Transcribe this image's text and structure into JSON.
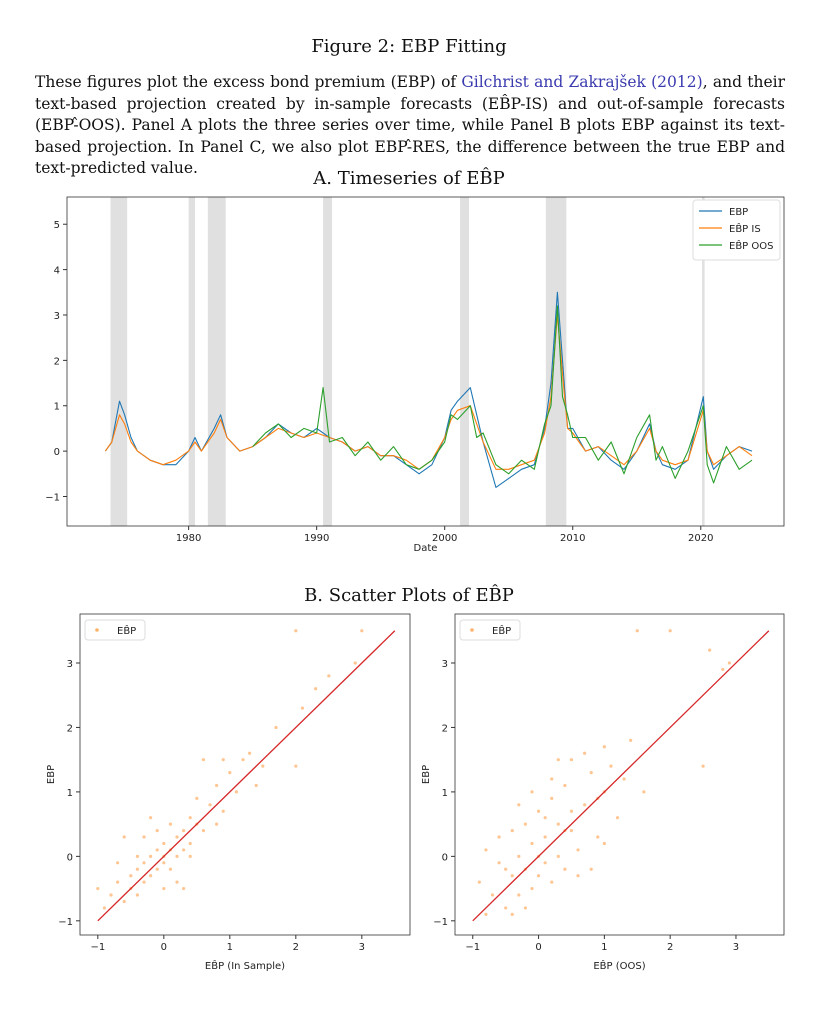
{
  "figure_title": "Figure 2: EBP Fitting",
  "caption": {
    "part1": "These figures plot the excess bond premium (EBP) of ",
    "link": "Gilchrist and Zakrajšek (2012)",
    "part2": ", and their text-based projection created by in-sample forecasts (EB̂P-IS) and out-of-sample forecasts (EBP-̂OOS). Panel A plots the three series over time, while Panel B plots EBP against its text-based projection. In Panel C, we also plot EBP-̂RES, the difference between the true EBP and text-predicted value."
  },
  "panelA_title": "A. Timeseries of EB̂P",
  "panelB_title": "B. Scatter Plots of EB̂P",
  "colors": {
    "ebp": "#1f77b4",
    "is": "#ff7f0e",
    "oos": "#2ca02c",
    "fit": "#d62728",
    "recession": "#e0e0e0"
  },
  "chart_data": [
    {
      "type": "line",
      "title": "A. Timeseries of EB̂P",
      "xlabel": "Date",
      "ylabel": "",
      "xlim": [
        1970.5,
        2026.5
      ],
      "ylim": [
        -1.65,
        5.6
      ],
      "xticks": [
        1980,
        1990,
        2000,
        2010,
        2020
      ],
      "yticks": [
        -1,
        0,
        1,
        2,
        3,
        4,
        5
      ],
      "legend_position": "top-right",
      "recessions": [
        [
          1973.9,
          1975.2
        ],
        [
          1980.0,
          1980.5
        ],
        [
          1981.5,
          1982.9
        ],
        [
          1990.5,
          1991.2
        ],
        [
          2001.2,
          2001.9
        ],
        [
          2007.9,
          2009.5
        ],
        [
          2020.1,
          2020.3
        ]
      ],
      "series": [
        {
          "name": "EBP",
          "key": "ebp",
          "x": [
            1973.5,
            1974,
            1974.6,
            1975,
            1975.5,
            1976,
            1977,
            1978,
            1979,
            1980,
            1980.5,
            1981,
            1982,
            1982.5,
            1983,
            1984,
            1985,
            1986,
            1987,
            1988,
            1989,
            1990,
            1991,
            1992,
            1993,
            1994,
            1995,
            1996,
            1997,
            1998,
            1999,
            2000,
            2000.5,
            2001,
            2002,
            2002.5,
            2003,
            2004,
            2005,
            2006,
            2007,
            2007.8,
            2008.3,
            2008.8,
            2009.2,
            2009.6,
            2010,
            2011,
            2012,
            2013,
            2014,
            2015,
            2016,
            2016.5,
            2017,
            2018,
            2019,
            2020.2,
            2020.5,
            2021,
            2022,
            2023,
            2024
          ],
          "y": [
            0.0,
            0.2,
            1.1,
            0.8,
            0.3,
            0.0,
            -0.2,
            -0.3,
            -0.3,
            0.0,
            0.3,
            0.0,
            0.5,
            0.8,
            0.3,
            0.0,
            0.1,
            0.3,
            0.6,
            0.4,
            0.3,
            0.5,
            0.3,
            0.2,
            0.0,
            0.1,
            -0.1,
            -0.1,
            -0.3,
            -0.5,
            -0.3,
            0.3,
            0.9,
            1.1,
            1.4,
            0.8,
            0.2,
            -0.8,
            -0.6,
            -0.4,
            -0.3,
            0.5,
            1.5,
            3.5,
            2.0,
            0.5,
            0.5,
            0.0,
            0.1,
            -0.2,
            -0.4,
            0.0,
            0.6,
            0.0,
            -0.3,
            -0.4,
            -0.2,
            1.2,
            0.0,
            -0.4,
            -0.1,
            0.1,
            0.0
          ]
        },
        {
          "name": "EB̂P IS",
          "key": "is",
          "x": [
            1973.5,
            1974,
            1974.6,
            1975,
            1975.5,
            1976,
            1977,
            1978,
            1979,
            1980,
            1980.5,
            1981,
            1982,
            1982.5,
            1983,
            1984,
            1985,
            1986,
            1987,
            1988,
            1989,
            1990,
            1991,
            1992,
            1993,
            1994,
            1995,
            1996,
            1997,
            1998,
            1999,
            2000,
            2000.5,
            2001,
            2002,
            2002.5,
            2003,
            2004,
            2005,
            2006,
            2007,
            2007.8,
            2008.3,
            2008.8,
            2009.2,
            2009.6,
            2010,
            2011,
            2012,
            2013,
            2014,
            2015,
            2016,
            2016.5,
            2017,
            2018,
            2019,
            2020.2,
            2020.5,
            2021,
            2022,
            2023,
            2024
          ],
          "y": [
            0.0,
            0.2,
            0.8,
            0.6,
            0.2,
            0.0,
            -0.2,
            -0.3,
            -0.2,
            0.0,
            0.2,
            0.0,
            0.4,
            0.7,
            0.3,
            0.0,
            0.1,
            0.3,
            0.5,
            0.4,
            0.3,
            0.4,
            0.3,
            0.2,
            0.0,
            0.1,
            -0.1,
            -0.1,
            -0.2,
            -0.4,
            -0.2,
            0.3,
            0.7,
            0.9,
            1.0,
            0.6,
            0.2,
            -0.4,
            -0.4,
            -0.3,
            -0.2,
            0.4,
            1.2,
            3.0,
            1.7,
            0.5,
            0.4,
            0.0,
            0.1,
            -0.1,
            -0.3,
            0.0,
            0.5,
            0.0,
            -0.2,
            -0.3,
            -0.2,
            0.9,
            0.0,
            -0.3,
            -0.1,
            0.1,
            -0.1
          ]
        },
        {
          "name": "EB̂P OOS",
          "key": "oos",
          "x": [
            1985,
            1986,
            1987,
            1988,
            1989,
            1990,
            1990.5,
            1991,
            1992,
            1993,
            1994,
            1995,
            1996,
            1997,
            1998,
            1999,
            2000,
            2000.5,
            2001,
            2002,
            2002.5,
            2003,
            2004,
            2005,
            2006,
            2007,
            2007.8,
            2008.3,
            2008.8,
            2009.2,
            2009.6,
            2010,
            2011,
            2012,
            2013,
            2014,
            2015,
            2016,
            2016.5,
            2017,
            2018,
            2019,
            2020.2,
            2020.5,
            2021,
            2022,
            2023,
            2024
          ],
          "y": [
            0.1,
            0.4,
            0.6,
            0.3,
            0.5,
            0.4,
            1.4,
            0.2,
            0.3,
            -0.1,
            0.2,
            -0.2,
            0.1,
            -0.3,
            -0.4,
            -0.2,
            0.2,
            0.8,
            0.7,
            1.0,
            0.3,
            0.4,
            -0.3,
            -0.5,
            -0.2,
            -0.4,
            0.6,
            1.0,
            3.2,
            1.2,
            0.8,
            0.3,
            0.3,
            -0.2,
            0.2,
            -0.5,
            0.3,
            0.8,
            -0.2,
            0.1,
            -0.6,
            0.0,
            1.0,
            -0.3,
            -0.7,
            0.1,
            -0.4,
            -0.2
          ]
        }
      ]
    },
    {
      "type": "scatter",
      "xlabel": "EB̂P (In Sample)",
      "ylabel": "EBP",
      "legend": "EB̂P",
      "legend_position": "top-left",
      "xlim": [
        -1.27,
        3.73
      ],
      "ylim": [
        -1.22,
        3.76
      ],
      "xticks": [
        -1,
        0,
        1,
        2,
        3
      ],
      "yticks": [
        -1,
        0,
        1,
        2,
        3
      ],
      "fit_line": [
        [
          -1,
          -1
        ],
        [
          3.5,
          3.5
        ]
      ],
      "points": [
        [
          -0.9,
          -0.8
        ],
        [
          -0.8,
          -0.6
        ],
        [
          -0.7,
          -0.4
        ],
        [
          -0.6,
          -0.7
        ],
        [
          -0.5,
          -0.3
        ],
        [
          -0.5,
          -0.5
        ],
        [
          -0.4,
          -0.2
        ],
        [
          -0.4,
          -0.6
        ],
        [
          -0.3,
          -0.1
        ],
        [
          -0.3,
          -0.4
        ],
        [
          -0.2,
          0.0
        ],
        [
          -0.2,
          -0.3
        ],
        [
          -0.1,
          0.1
        ],
        [
          -0.1,
          -0.2
        ],
        [
          0.0,
          0.0
        ],
        [
          0.0,
          -0.1
        ],
        [
          0.0,
          0.2
        ],
        [
          0.1,
          0.1
        ],
        [
          0.1,
          -0.2
        ],
        [
          0.2,
          0.3
        ],
        [
          0.2,
          0.0
        ],
        [
          0.3,
          0.4
        ],
        [
          0.3,
          0.1
        ],
        [
          0.4,
          0.6
        ],
        [
          0.4,
          0.2
        ],
        [
          0.5,
          0.5
        ],
        [
          0.5,
          0.9
        ],
        [
          0.6,
          0.4
        ],
        [
          0.7,
          0.8
        ],
        [
          0.8,
          1.1
        ],
        [
          0.9,
          0.7
        ],
        [
          1.0,
          1.3
        ],
        [
          1.1,
          1.0
        ],
        [
          1.2,
          1.5
        ],
        [
          1.5,
          1.4
        ],
        [
          1.7,
          2.0
        ],
        [
          2.0,
          1.4
        ],
        [
          2.1,
          2.3
        ],
        [
          2.3,
          2.6
        ],
        [
          2.5,
          2.8
        ],
        [
          2.9,
          3.0
        ],
        [
          3.0,
          3.5
        ],
        [
          2.0,
          3.5
        ],
        [
          -0.6,
          0.3
        ],
        [
          -0.2,
          0.6
        ],
        [
          0.3,
          -0.5
        ],
        [
          0.6,
          1.5
        ],
        [
          -0.7,
          -0.1
        ],
        [
          0.1,
          0.5
        ],
        [
          -0.3,
          0.3
        ],
        [
          0.2,
          -0.4
        ],
        [
          0.8,
          0.5
        ],
        [
          -1.0,
          -0.5
        ],
        [
          1.4,
          1.1
        ],
        [
          -0.4,
          0.0
        ],
        [
          0.0,
          -0.5
        ],
        [
          -0.1,
          0.4
        ],
        [
          0.4,
          0.0
        ],
        [
          0.9,
          1.5
        ],
        [
          1.3,
          1.6
        ]
      ]
    },
    {
      "type": "scatter",
      "xlabel": "EB̂P (OOS)",
      "ylabel": "EBP",
      "legend": "EB̂P",
      "legend_position": "top-left",
      "xlim": [
        -1.27,
        3.73
      ],
      "ylim": [
        -1.22,
        3.76
      ],
      "xticks": [
        -1,
        0,
        1,
        2,
        3
      ],
      "yticks": [
        -1,
        0,
        1,
        2,
        3
      ],
      "fit_line": [
        [
          -1,
          -1
        ],
        [
          3.5,
          3.5
        ]
      ],
      "points": [
        [
          -0.9,
          -0.4
        ],
        [
          -0.8,
          0.1
        ],
        [
          -0.7,
          -0.6
        ],
        [
          -0.6,
          0.3
        ],
        [
          -0.5,
          -0.2
        ],
        [
          -0.5,
          -0.8
        ],
        [
          -0.4,
          0.4
        ],
        [
          -0.4,
          -0.3
        ],
        [
          -0.3,
          0.0
        ],
        [
          -0.3,
          -0.6
        ],
        [
          -0.2,
          0.5
        ],
        [
          -0.2,
          -0.2
        ],
        [
          -0.1,
          0.2
        ],
        [
          -0.1,
          -0.5
        ],
        [
          0.0,
          0.0
        ],
        [
          0.0,
          0.7
        ],
        [
          0.0,
          -0.3
        ],
        [
          0.1,
          0.3
        ],
        [
          0.1,
          -0.1
        ],
        [
          0.2,
          0.9
        ],
        [
          0.2,
          -0.4
        ],
        [
          0.3,
          0.5
        ],
        [
          0.3,
          0.0
        ],
        [
          0.4,
          1.1
        ],
        [
          0.4,
          -0.2
        ],
        [
          0.5,
          0.4
        ],
        [
          0.5,
          1.5
        ],
        [
          0.6,
          0.1
        ],
        [
          0.7,
          0.8
        ],
        [
          0.8,
          1.3
        ],
        [
          0.9,
          0.3
        ],
        [
          1.0,
          1.0
        ],
        [
          1.1,
          1.4
        ],
        [
          1.2,
          0.6
        ],
        [
          1.4,
          1.8
        ],
        [
          1.5,
          3.5
        ],
        [
          1.6,
          1.0
        ],
        [
          2.0,
          3.5
        ],
        [
          2.5,
          1.4
        ],
        [
          2.6,
          3.2
        ],
        [
          2.8,
          2.9
        ],
        [
          2.9,
          3.0
        ],
        [
          -0.6,
          -0.1
        ],
        [
          0.2,
          1.2
        ],
        [
          0.7,
          1.6
        ],
        [
          -0.3,
          0.8
        ],
        [
          0.6,
          -0.3
        ],
        [
          -0.8,
          -0.9
        ],
        [
          0.3,
          1.5
        ],
        [
          0.9,
          0.9
        ],
        [
          -0.1,
          1.0
        ],
        [
          1.0,
          0.2
        ],
        [
          0.8,
          -0.2
        ],
        [
          1.3,
          1.2
        ],
        [
          -0.4,
          -0.9
        ],
        [
          0.5,
          0.7
        ],
        [
          0.1,
          0.6
        ],
        [
          -0.2,
          -0.8
        ],
        [
          1.0,
          1.7
        ],
        [
          0.4,
          0.4
        ]
      ]
    }
  ]
}
